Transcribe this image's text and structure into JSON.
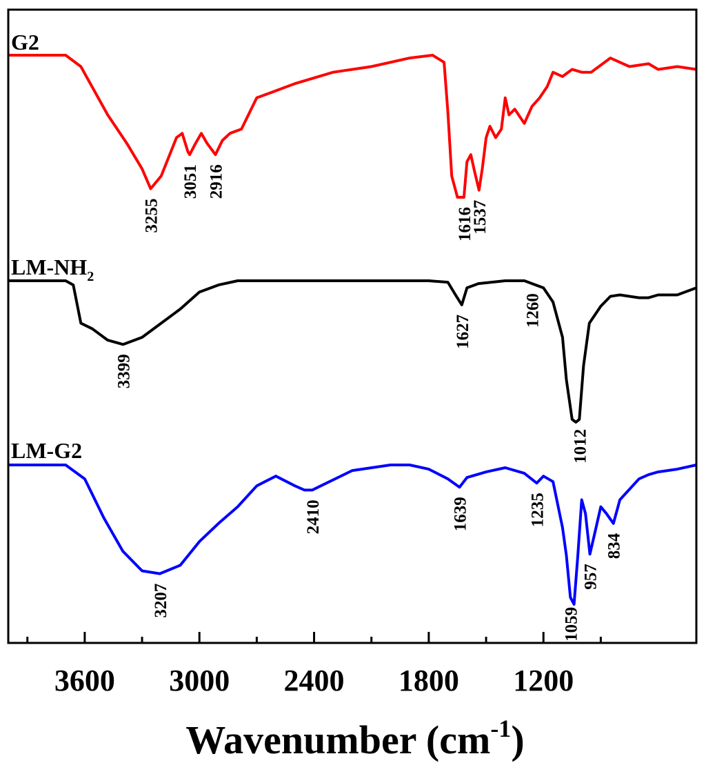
{
  "chart_data": {
    "type": "line",
    "xlabel": "Wavenumber (cm",
    "xlabel_sup": "-1",
    "xlabel_close": ")",
    "xlim": [
      4000,
      400
    ],
    "x_reversed": true,
    "x_ticks": [
      3600,
      3000,
      2400,
      1800,
      1200
    ],
    "y_ticks_shown": false,
    "grid": false,
    "series": [
      {
        "name": "G2",
        "name_main": "G2",
        "name_sub": "",
        "color": "#ff0000",
        "points": [
          [
            4000,
            0.0
          ],
          [
            3700,
            0.0
          ],
          [
            3620,
            0.08
          ],
          [
            3480,
            0.42
          ],
          [
            3380,
            0.62
          ],
          [
            3300,
            0.8
          ],
          [
            3255,
            0.94
          ],
          [
            3200,
            0.85
          ],
          [
            3120,
            0.58
          ],
          [
            3090,
            0.55
          ],
          [
            3060,
            0.68
          ],
          [
            3051,
            0.7
          ],
          [
            3020,
            0.62
          ],
          [
            2990,
            0.55
          ],
          [
            2960,
            0.62
          ],
          [
            2916,
            0.7
          ],
          [
            2880,
            0.6
          ],
          [
            2840,
            0.55
          ],
          [
            2780,
            0.52
          ],
          [
            2700,
            0.3
          ],
          [
            2620,
            0.26
          ],
          [
            2500,
            0.2
          ],
          [
            2300,
            0.12
          ],
          [
            2100,
            0.08
          ],
          [
            1900,
            0.02
          ],
          [
            1780,
            0.0
          ],
          [
            1720,
            0.05
          ],
          [
            1700,
            0.4
          ],
          [
            1680,
            0.85
          ],
          [
            1650,
            1.0
          ],
          [
            1616,
            1.0
          ],
          [
            1600,
            0.75
          ],
          [
            1580,
            0.7
          ],
          [
            1560,
            0.82
          ],
          [
            1537,
            0.95
          ],
          [
            1520,
            0.8
          ],
          [
            1500,
            0.58
          ],
          [
            1480,
            0.5
          ],
          [
            1450,
            0.58
          ],
          [
            1420,
            0.52
          ],
          [
            1400,
            0.3
          ],
          [
            1380,
            0.42
          ],
          [
            1350,
            0.38
          ],
          [
            1300,
            0.48
          ],
          [
            1260,
            0.36
          ],
          [
            1220,
            0.3
          ],
          [
            1180,
            0.22
          ],
          [
            1150,
            0.12
          ],
          [
            1100,
            0.15
          ],
          [
            1050,
            0.1
          ],
          [
            1000,
            0.12
          ],
          [
            950,
            0.12
          ],
          [
            850,
            0.02
          ],
          [
            750,
            0.08
          ],
          [
            650,
            0.06
          ],
          [
            600,
            0.1
          ],
          [
            500,
            0.08
          ],
          [
            400,
            0.1
          ]
        ]
      },
      {
        "name": "LM-NH2",
        "name_main": "LM-NH",
        "name_sub": "2",
        "color": "#000000",
        "points": [
          [
            4000,
            0.0
          ],
          [
            3700,
            0.0
          ],
          [
            3660,
            0.03
          ],
          [
            3620,
            0.3
          ],
          [
            3560,
            0.34
          ],
          [
            3480,
            0.42
          ],
          [
            3399,
            0.45
          ],
          [
            3300,
            0.4
          ],
          [
            3200,
            0.3
          ],
          [
            3100,
            0.2
          ],
          [
            3000,
            0.08
          ],
          [
            2900,
            0.03
          ],
          [
            2800,
            0.0
          ],
          [
            2000,
            0.0
          ],
          [
            1800,
            0.0
          ],
          [
            1700,
            0.01
          ],
          [
            1660,
            0.1
          ],
          [
            1627,
            0.17
          ],
          [
            1600,
            0.05
          ],
          [
            1540,
            0.02
          ],
          [
            1400,
            0.0
          ],
          [
            1300,
            0.0
          ],
          [
            1260,
            0.02
          ],
          [
            1200,
            0.05
          ],
          [
            1150,
            0.15
          ],
          [
            1100,
            0.4
          ],
          [
            1080,
            0.7
          ],
          [
            1050,
            0.98
          ],
          [
            1030,
            1.0
          ],
          [
            1012,
            0.98
          ],
          [
            990,
            0.6
          ],
          [
            960,
            0.3
          ],
          [
            900,
            0.18
          ],
          [
            850,
            0.11
          ],
          [
            800,
            0.1
          ],
          [
            700,
            0.12
          ],
          [
            650,
            0.12
          ],
          [
            600,
            0.1
          ],
          [
            500,
            0.1
          ],
          [
            400,
            0.05
          ]
        ]
      },
      {
        "name": "LM-G2",
        "name_main": "LM-G2",
        "name_sub": "",
        "color": "#0000ff",
        "points": [
          [
            4000,
            0.0
          ],
          [
            3700,
            0.0
          ],
          [
            3600,
            0.1
          ],
          [
            3500,
            0.38
          ],
          [
            3400,
            0.62
          ],
          [
            3300,
            0.76
          ],
          [
            3207,
            0.78
          ],
          [
            3100,
            0.72
          ],
          [
            3000,
            0.55
          ],
          [
            2900,
            0.42
          ],
          [
            2800,
            0.3
          ],
          [
            2700,
            0.15
          ],
          [
            2600,
            0.08
          ],
          [
            2500,
            0.15
          ],
          [
            2450,
            0.18
          ],
          [
            2410,
            0.18
          ],
          [
            2350,
            0.14
          ],
          [
            2200,
            0.04
          ],
          [
            2000,
            0.0
          ],
          [
            1900,
            0.0
          ],
          [
            1800,
            0.03
          ],
          [
            1700,
            0.1
          ],
          [
            1639,
            0.16
          ],
          [
            1600,
            0.09
          ],
          [
            1500,
            0.05
          ],
          [
            1400,
            0.02
          ],
          [
            1300,
            0.06
          ],
          [
            1235,
            0.13
          ],
          [
            1200,
            0.08
          ],
          [
            1150,
            0.12
          ],
          [
            1100,
            0.45
          ],
          [
            1080,
            0.65
          ],
          [
            1059,
            0.95
          ],
          [
            1040,
            1.0
          ],
          [
            1020,
            0.65
          ],
          [
            1000,
            0.25
          ],
          [
            980,
            0.35
          ],
          [
            957,
            0.64
          ],
          [
            930,
            0.48
          ],
          [
            900,
            0.3
          ],
          [
            870,
            0.35
          ],
          [
            834,
            0.42
          ],
          [
            800,
            0.25
          ],
          [
            700,
            0.1
          ],
          [
            650,
            0.07
          ],
          [
            600,
            0.05
          ],
          [
            500,
            0.03
          ],
          [
            400,
            0.0
          ]
        ]
      }
    ],
    "peak_labels": [
      {
        "series": 0,
        "text": "3255",
        "x": 3255
      },
      {
        "series": 0,
        "text": "3051",
        "x": 3051
      },
      {
        "series": 0,
        "text": "2916",
        "x": 2916
      },
      {
        "series": 0,
        "text": "1616",
        "x": 1616
      },
      {
        "series": 0,
        "text": "1537",
        "x": 1537
      },
      {
        "series": 1,
        "text": "3399",
        "x": 3399
      },
      {
        "series": 1,
        "text": "1627",
        "x": 1627
      },
      {
        "series": 1,
        "text": "1260",
        "x": 1260
      },
      {
        "series": 1,
        "text": "1012",
        "x": 1012
      },
      {
        "series": 2,
        "text": "3207",
        "x": 3207
      },
      {
        "series": 2,
        "text": "2410",
        "x": 2410
      },
      {
        "series": 2,
        "text": "1639",
        "x": 1639
      },
      {
        "series": 2,
        "text": "1235",
        "x": 1235
      },
      {
        "series": 2,
        "text": "1059",
        "x": 1059
      },
      {
        "series": 2,
        "text": "957",
        "x": 957
      },
      {
        "series": 2,
        "text": "834",
        "x": 834
      }
    ]
  }
}
